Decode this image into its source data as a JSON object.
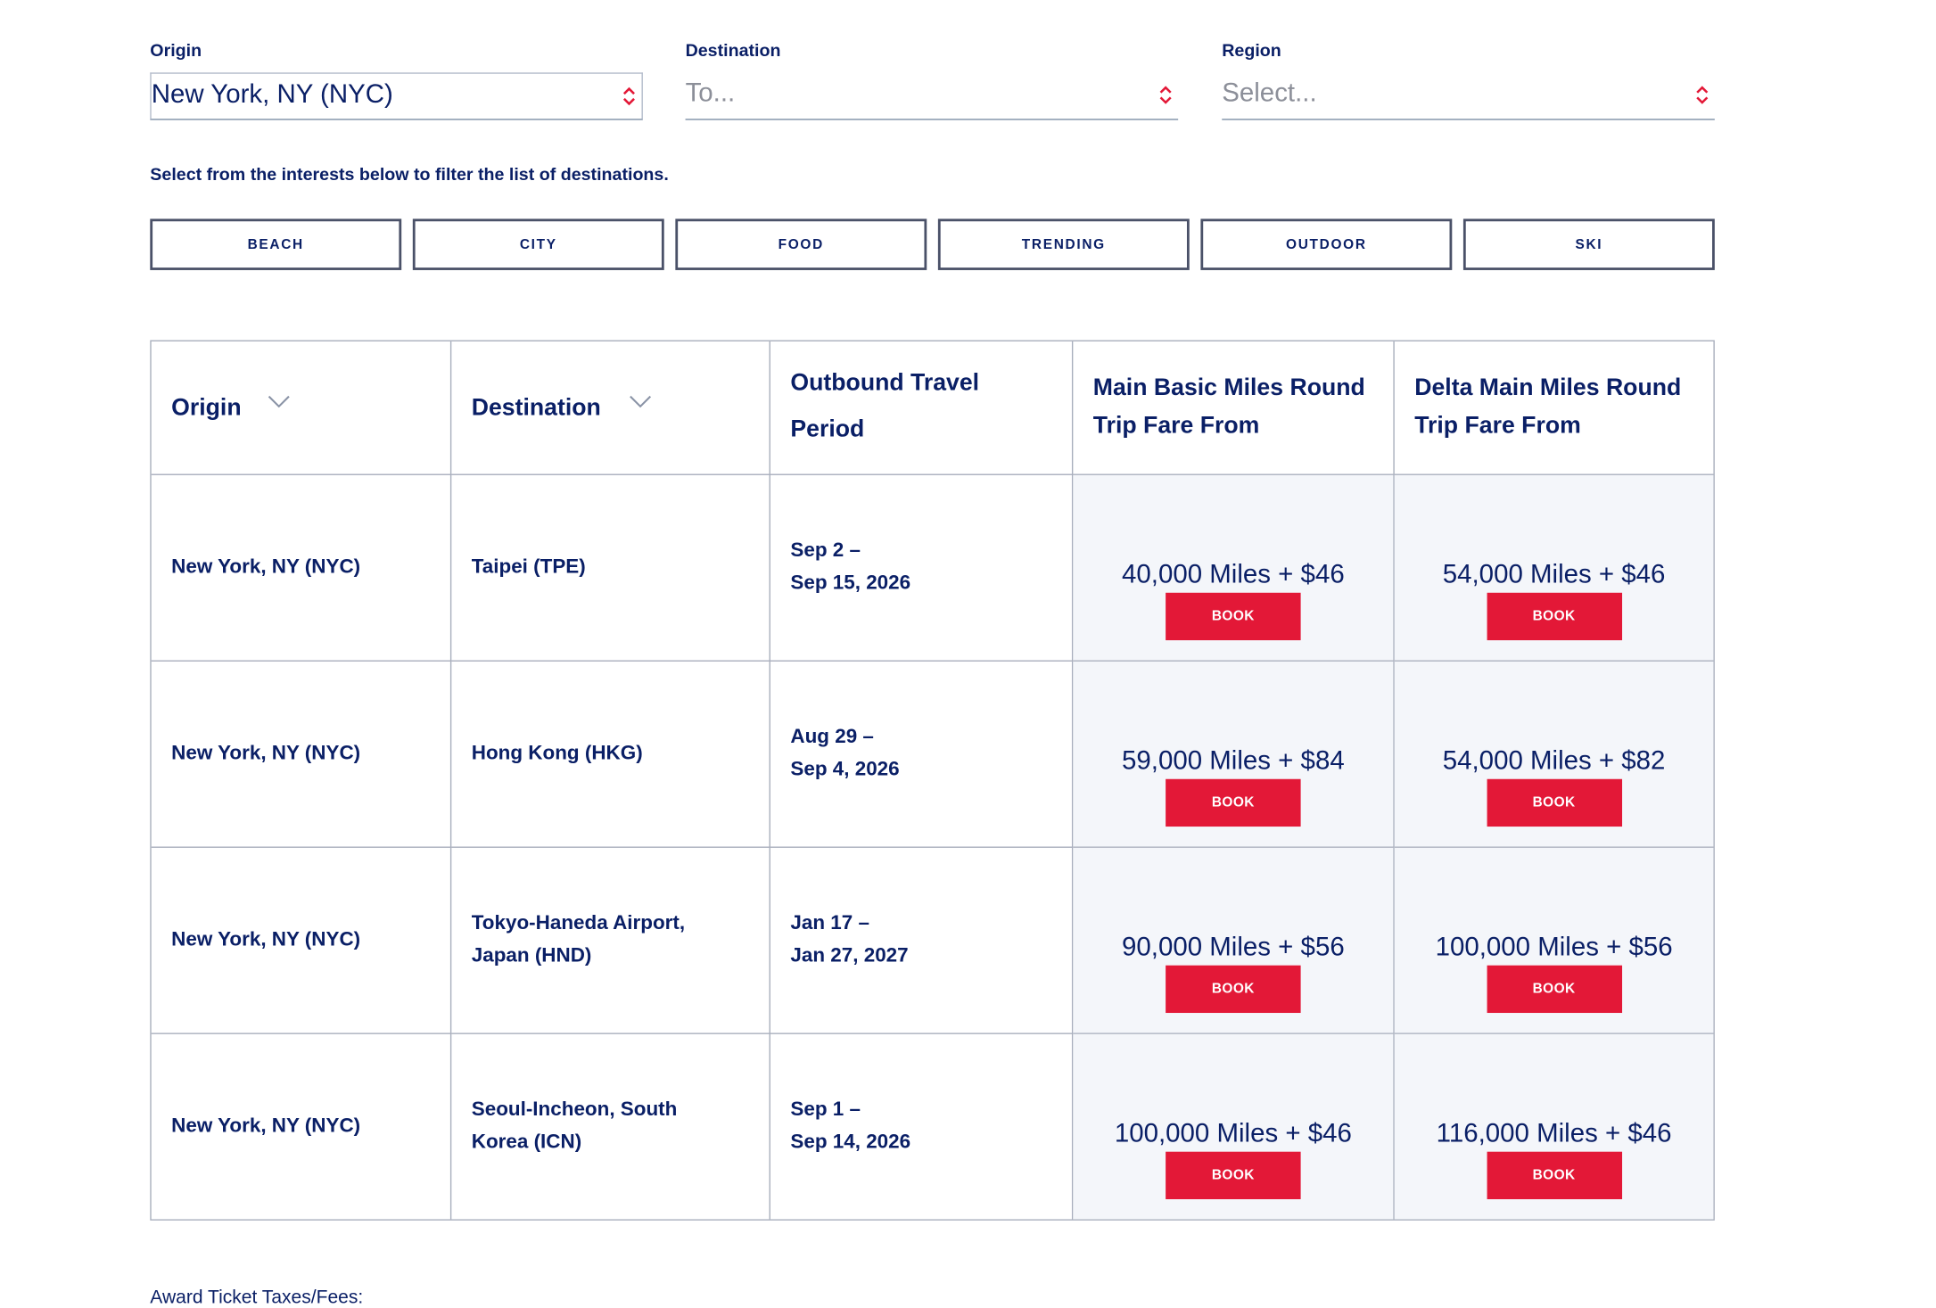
{
  "filters": {
    "origin": {
      "label": "Origin",
      "value": "New York, NY (NYC)"
    },
    "destination": {
      "label": "Destination",
      "placeholder": "To..."
    },
    "region": {
      "label": "Region",
      "placeholder": "Select..."
    }
  },
  "interests": {
    "hint": "Select from the interests below to filter the list of destinations.",
    "chips": [
      "BEACH",
      "CITY",
      "FOOD",
      "TRENDING",
      "OUTDOOR",
      "SKI"
    ]
  },
  "table": {
    "headers": {
      "origin": "Origin",
      "destination": "Destination",
      "period_line1": "Outbound Travel",
      "period_line2": "Period",
      "basic_line1": "Main Basic Miles Round",
      "basic_line2": "Trip Fare From",
      "main_line1": "Delta Main Miles Round",
      "main_line2": "Trip Fare From"
    },
    "book_label": "BOOK",
    "rows": [
      {
        "origin": "New York, NY (NYC)",
        "destination_line1": "Taipei (TPE)",
        "destination_line2": "",
        "period_line1": "Sep 2 –",
        "period_line2": "Sep 15, 2026",
        "basic_fare": "40,000 Miles + $46",
        "main_fare": "54,000 Miles + $46"
      },
      {
        "origin": "New York, NY (NYC)",
        "destination_line1": "Hong Kong (HKG)",
        "destination_line2": "",
        "period_line1": "Aug 29 –",
        "period_line2": "Sep 4, 2026",
        "basic_fare": "59,000 Miles + $84",
        "main_fare": "54,000 Miles + $82"
      },
      {
        "origin": "New York, NY (NYC)",
        "destination_line1": "Tokyo-Haneda Airport,",
        "destination_line2": "Japan (HND)",
        "period_line1": "Jan 17 –",
        "period_line2": "Jan 27, 2027",
        "basic_fare": "90,000 Miles + $56",
        "main_fare": "100,000 Miles + $56"
      },
      {
        "origin": "New York, NY (NYC)",
        "destination_line1": "Seoul-Incheon, South",
        "destination_line2": "Korea (ICN)",
        "period_line1": "Sep 1 –",
        "period_line2": "Sep 14, 2026",
        "basic_fare": "100,000 Miles + $46",
        "main_fare": "116,000 Miles + $46"
      }
    ]
  },
  "footnote": "Award Ticket Taxes/Fees:",
  "colors": {
    "text": "#0a1f66",
    "accent": "#e31837",
    "border": "#a9afbd",
    "shade": "#f4f6fa"
  },
  "icons": {
    "select_chevron": "chevron-up-down-icon",
    "sort": "chevron-down-icon"
  }
}
